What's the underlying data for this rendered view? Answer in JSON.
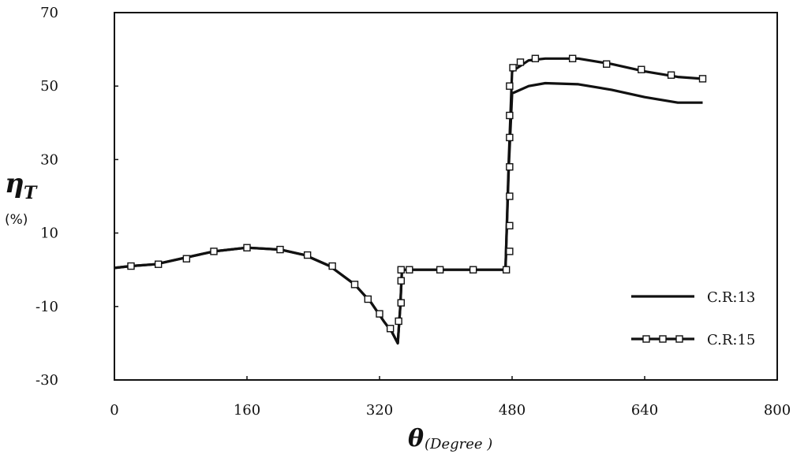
{
  "chart_data": {
    "type": "line",
    "xlim": [
      0,
      800
    ],
    "ylim": [
      -30,
      70
    ],
    "xticks": [
      0,
      160,
      320,
      480,
      640,
      800
    ],
    "yticks": [
      -30,
      -10,
      10,
      30,
      50,
      70
    ],
    "grid": false,
    "legend_placement": "bottom-right",
    "ylabel": {
      "symbol": "η",
      "subscript": "T",
      "unit": "(%)"
    },
    "xlabel": {
      "symbol": "θ",
      "unit": "(Degree )"
    },
    "series": [
      {
        "name": "C.R:13",
        "color": "#111111",
        "marker": "none",
        "x": [
          0,
          20,
          50,
          80,
          120,
          160,
          200,
          230,
          260,
          290,
          310,
          325,
          335,
          342,
          345,
          347,
          360,
          400,
          440,
          472,
          476,
          480,
          500,
          520,
          560,
          600,
          640,
          680,
          710
        ],
        "y": [
          0.5,
          1,
          1.5,
          3,
          5,
          6,
          5.5,
          4,
          1,
          -4,
          -9,
          -14,
          -17,
          -20,
          -10,
          0,
          0,
          0,
          0,
          0,
          28,
          48,
          50,
          50.8,
          50.5,
          49,
          47,
          45.5,
          45.5
        ]
      },
      {
        "name": "C.R:15",
        "color": "#111111",
        "marker": "square",
        "x": [
          0,
          20,
          50,
          80,
          120,
          160,
          200,
          230,
          260,
          290,
          310,
          325,
          335,
          342,
          345,
          347,
          360,
          400,
          440,
          472,
          476,
          480,
          500,
          520,
          560,
          600,
          640,
          680,
          710
        ],
        "y": [
          0.5,
          1,
          1.5,
          3,
          5,
          6,
          5.5,
          4,
          1,
          -4,
          -9,
          -14,
          -17,
          -20,
          -10,
          0,
          0,
          0,
          0,
          0,
          30,
          54,
          57,
          57.5,
          57.5,
          56,
          54,
          52.5,
          52
        ]
      }
    ],
    "marker_points": {
      "x": [
        20,
        53,
        87,
        120,
        160,
        200,
        233,
        263,
        290,
        306,
        320,
        333,
        343,
        346,
        346,
        346,
        356,
        393,
        433,
        473,
        477,
        477,
        477,
        477,
        477,
        477,
        477,
        481,
        490,
        508,
        553,
        594,
        636,
        672,
        710
      ],
      "y": [
        1,
        1.5,
        3,
        5,
        6,
        5.5,
        4,
        1,
        -4,
        -8,
        -12,
        -16,
        -14,
        -9,
        -3,
        0,
        0,
        0,
        0,
        0,
        5,
        12,
        20,
        28,
        36,
        42,
        50,
        55,
        56.5,
        57.5,
        57.5,
        56,
        54.5,
        53,
        52
      ]
    }
  }
}
